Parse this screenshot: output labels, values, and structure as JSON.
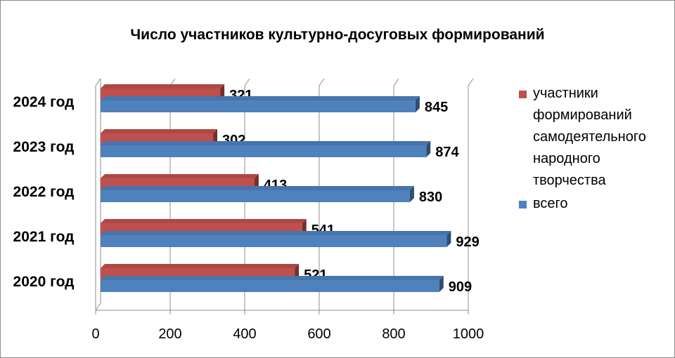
{
  "chart_data": {
    "type": "bar",
    "orientation": "horizontal",
    "title": "Число участников культурно-досуговых формирований",
    "categories": [
      "2020 год",
      "2021 год",
      "2022 год",
      "2023 год",
      "2024 год"
    ],
    "series": [
      {
        "name": "участники формирований самодеятельного народного творчества",
        "color": "#c0504d",
        "values": [
          521,
          541,
          413,
          302,
          321
        ]
      },
      {
        "name": "всего",
        "color": "#4f81bd",
        "values": [
          909,
          929,
          830,
          874,
          845
        ]
      }
    ],
    "xlim": [
      0,
      1000
    ],
    "xticks": [
      "0",
      "200",
      "400",
      "600",
      "800",
      "1000"
    ],
    "grid": true,
    "legend_position": "right"
  }
}
